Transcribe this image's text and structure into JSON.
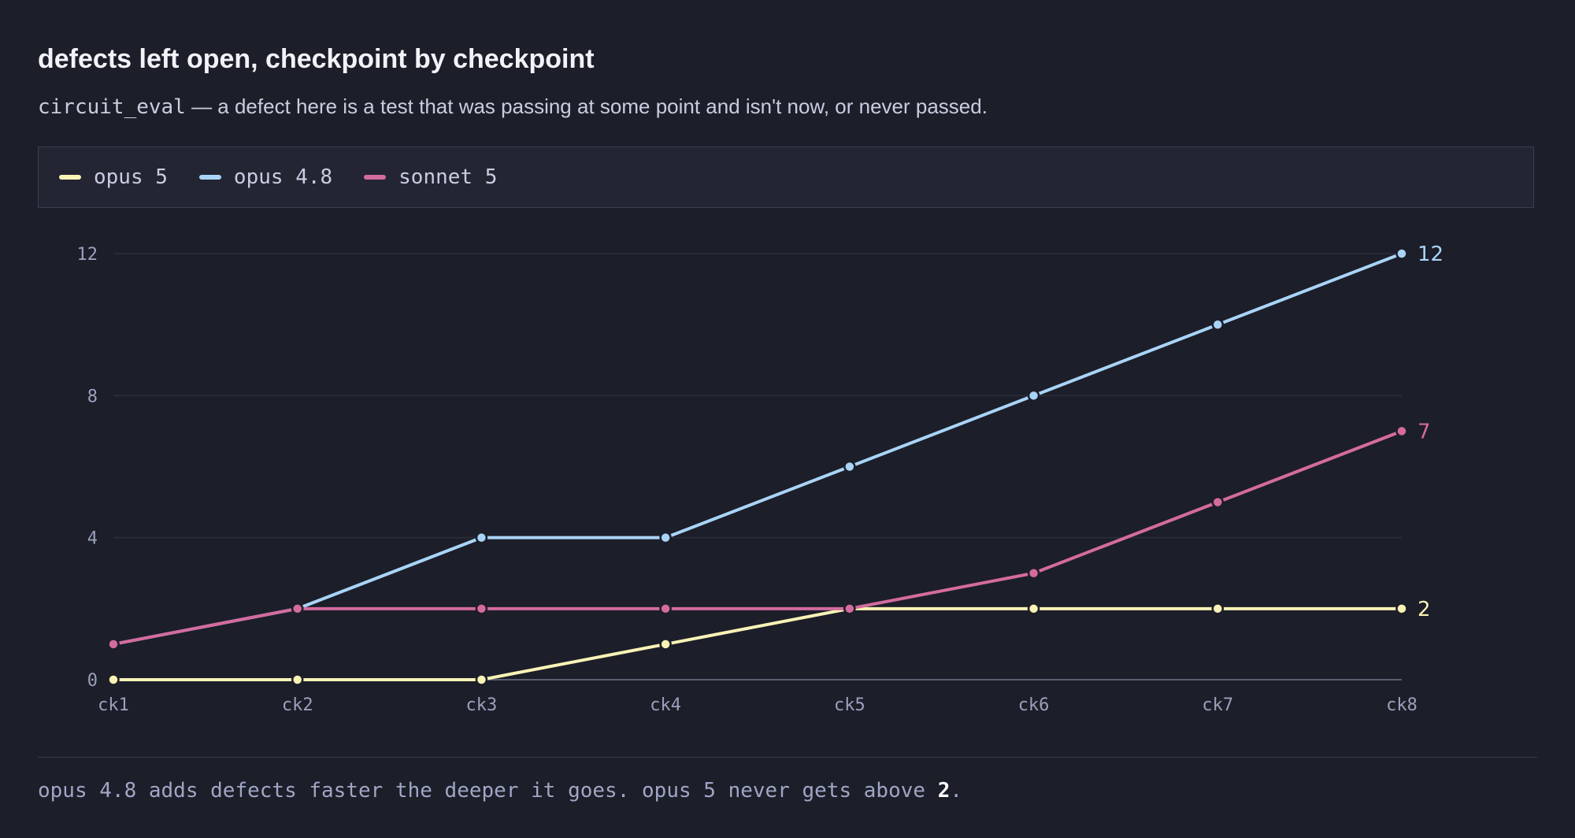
{
  "title": "defects left open, checkpoint by checkpoint",
  "subtitle": {
    "code": "circuit_eval",
    "text": " — a defect here is a test that was passing at some point and isn't now, or never passed."
  },
  "footnote": {
    "text": "opus 4.8 adds defects faster the deeper it goes. opus 5 never gets above ",
    "highlight": "2",
    "end": "."
  },
  "chart_data": {
    "type": "line",
    "categories": [
      "ck1",
      "ck2",
      "ck3",
      "ck4",
      "ck5",
      "ck6",
      "ck7",
      "ck8"
    ],
    "ylim": [
      0,
      12
    ],
    "yticks": [
      0,
      4,
      8,
      12
    ],
    "grid": true,
    "legend_position": "top",
    "series": [
      {
        "name": "opus 5",
        "color": "#f9f3b6",
        "values": [
          0,
          0,
          0,
          1,
          2,
          2,
          2,
          2
        ],
        "end_label": "2"
      },
      {
        "name": "opus 4.8",
        "color": "#a9d4f7",
        "values": [
          1,
          2,
          4,
          4,
          6,
          8,
          10,
          12
        ],
        "end_label": "12"
      },
      {
        "name": "sonnet 5",
        "color": "#d46b9e",
        "values": [
          1,
          2,
          2,
          2,
          2,
          3,
          5,
          7
        ],
        "end_label": "7"
      }
    ]
  },
  "colors": {
    "background": "#1c1e29",
    "grid": "#2c2f3d",
    "axis": "#5a5e72",
    "tick_text": "#9ba1bd"
  }
}
